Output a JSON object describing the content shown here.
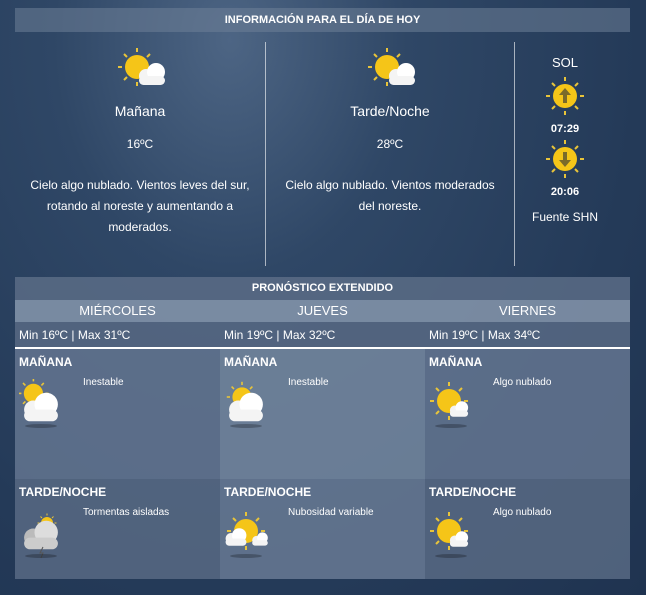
{
  "today": {
    "title": "INFORMACIÓN PARA EL DÍA DE HOY",
    "periods": [
      {
        "label": "Mañana",
        "temp": "16ºC",
        "description": "Cielo algo nublado. Vientos leves del sur, rotando al noreste y aumentando a moderados.",
        "icon": "partly-cloudy-icon"
      },
      {
        "label": "Tarde/Noche",
        "temp": "28ºC",
        "description": "Cielo algo nublado. Vientos moderados del noreste.",
        "icon": "partly-cloudy-icon"
      }
    ],
    "sun": {
      "title": "SOL",
      "sunrise": "07:29",
      "sunset": "20:06",
      "source": "Fuente SHN"
    }
  },
  "extended": {
    "title": "PRONÓSTICO EXTENDIDO",
    "days": [
      {
        "name": "MIÉRCOLES",
        "minmax": "Min 16ºC | Max 31ºC",
        "morning": {
          "label": "MAÑANA",
          "desc": "Inestable",
          "icon": "cloudy-sun-icon"
        },
        "evening": {
          "label": "TARDE/NOCHE",
          "desc": "Tormentas aisladas",
          "icon": "storm-icon"
        }
      },
      {
        "name": "JUEVES",
        "minmax": "Min 19ºC | Max 32ºC",
        "morning": {
          "label": "MAÑANA",
          "desc": "Inestable",
          "icon": "cloudy-sun-icon"
        },
        "evening": {
          "label": "TARDE/NOCHE",
          "desc": "Nubosidad variable",
          "icon": "variable-clouds-icon"
        }
      },
      {
        "name": "VIERNES",
        "minmax": "Min 19ºC | Max 34ºC",
        "morning": {
          "label": "MAÑANA",
          "desc": "Algo nublado",
          "icon": "partly-cloudy-icon"
        },
        "evening": {
          "label": "TARDE/NOCHE",
          "desc": "Algo nublado",
          "icon": "partly-cloudy-icon"
        }
      }
    ]
  },
  "colors": {
    "sun": "#f5c518",
    "background": "#263c5a"
  }
}
